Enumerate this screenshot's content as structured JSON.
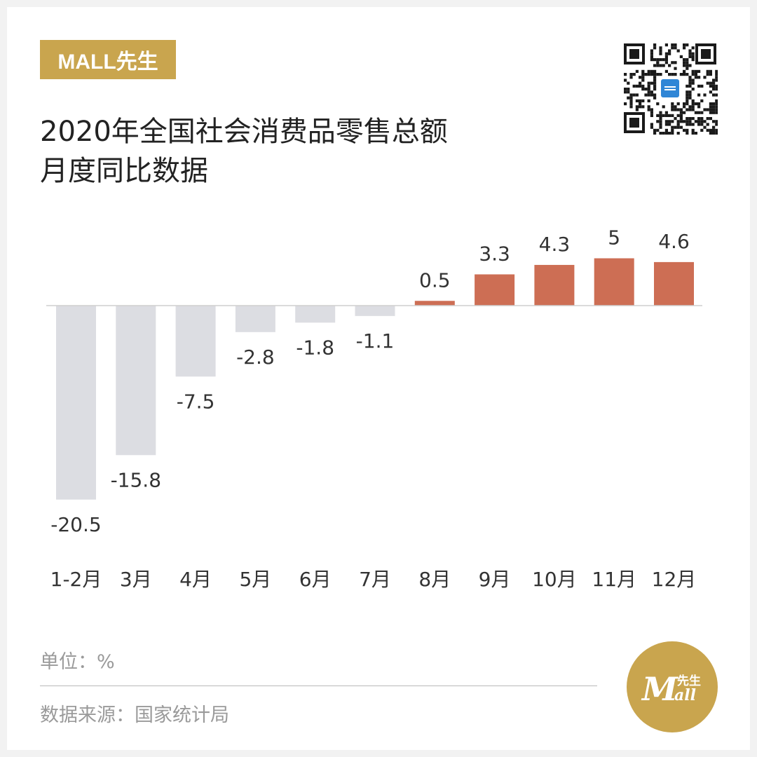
{
  "brand": {
    "tag_label": "MALL先生"
  },
  "header": {
    "title_line1": "2020年全国社会消费品零售总额",
    "title_line2": "月度同比数据"
  },
  "chart_data": {
    "type": "bar",
    "categories": [
      "1-2月",
      "3月",
      "4月",
      "5月",
      "6月",
      "7月",
      "8月",
      "9月",
      "10月",
      "11月",
      "12月"
    ],
    "values": [
      -20.5,
      -15.8,
      -7.5,
      -2.8,
      -1.8,
      -1.1,
      0.5,
      3.3,
      4.3,
      5,
      4.6
    ],
    "value_labels": [
      "-20.5",
      "-15.8",
      "-7.5",
      "-2.8",
      "-1.8",
      "-1.1",
      "0.5",
      "3.3",
      "4.3",
      "5",
      "4.6"
    ],
    "title": "",
    "xlabel": "",
    "ylabel": "",
    "ylim": [
      -20.5,
      5
    ],
    "grid": false,
    "legend": "none",
    "colors": {
      "negative": "#dcdde2",
      "positive": "#cd6e54",
      "baseline": "#cfcfcf"
    }
  },
  "footer": {
    "unit_text": "单位：%",
    "source_text": "数据来源：国家统计局"
  },
  "logo": {
    "script_text": "M",
    "small_text": "先生",
    "tail_text": "all"
  },
  "colors": {
    "gold": "#c9a54e"
  }
}
